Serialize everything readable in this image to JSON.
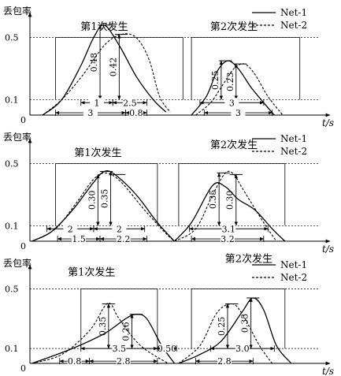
{
  "chart_data": [
    {
      "type": "line",
      "ylabel": "丢包率",
      "xlabel": "t/s",
      "origin_label": "0",
      "yticks": [
        {
          "value": 0.1,
          "label": "0.1"
        },
        {
          "value": 0.5,
          "label": "0.5"
        }
      ],
      "ylim": [
        0,
        0.62
      ],
      "xlim": [
        0,
        13.6
      ],
      "legend_position": "top-right",
      "legend": [
        {
          "name": "Net-1",
          "style": "solid"
        },
        {
          "name": "Net-2",
          "style": "dashed"
        }
      ],
      "event_labels": [
        {
          "text": "第1次发生",
          "x": 3.5,
          "y": 0.55
        },
        {
          "text": "第2次发生",
          "x": 9.6,
          "y": 0.55
        }
      ],
      "pulses": [
        [
          1.2,
          7.2
        ],
        [
          7.6,
          12.7
        ]
      ],
      "pulse_high": 0.5,
      "series": [
        {
          "name": "Net-1",
          "style": "solid",
          "x": [
            0.6,
            1.5,
            2.4,
            3.0,
            3.5,
            4.2,
            5.0,
            5.8,
            6.4
          ],
          "y": [
            0.0,
            0.1,
            0.32,
            0.5,
            0.58,
            0.45,
            0.25,
            0.1,
            0.02
          ]
        },
        {
          "name": "Net-2",
          "style": "dashed",
          "x": [
            0.6,
            1.5,
            2.5,
            3.5,
            4.3,
            5.0,
            5.6,
            6.1,
            6.6
          ],
          "y": [
            0.0,
            0.1,
            0.26,
            0.45,
            0.52,
            0.5,
            0.36,
            0.12,
            0.02
          ]
        },
        {
          "name": "Net-1",
          "style": "solid",
          "x": [
            7.6,
            8.3,
            8.8,
            9.3,
            9.8,
            10.4,
            11.0,
            11.5
          ],
          "y": [
            0.0,
            0.12,
            0.28,
            0.35,
            0.3,
            0.18,
            0.08,
            0.0
          ]
        },
        {
          "name": "Net-2",
          "style": "dashed",
          "x": [
            7.8,
            8.5,
            9.1,
            9.6,
            10.1,
            10.6,
            11.2,
            11.9
          ],
          "y": [
            0.0,
            0.08,
            0.2,
            0.3,
            0.33,
            0.26,
            0.12,
            0.0
          ]
        }
      ],
      "peak_caps": [
        [
          3.2,
          3.8,
          0.58
        ],
        [
          4.0,
          4.6,
          0.52
        ],
        [
          8.9,
          9.5,
          0.35
        ],
        [
          9.6,
          10.2,
          0.33
        ]
      ],
      "value_arrows": [
        {
          "x": 3.3,
          "y": 0.58,
          "label": "0.48"
        },
        {
          "x": 4.2,
          "y": 0.52,
          "label": "0.42"
        },
        {
          "x": 9.0,
          "y": 0.35,
          "label": "0.25"
        },
        {
          "x": 9.7,
          "y": 0.33,
          "label": "0.23"
        }
      ],
      "duration_arrows": [
        {
          "x1": 2.4,
          "x2": 3.9,
          "y": 0.08,
          "label": "1"
        },
        {
          "x1": 3.9,
          "x2": 5.5,
          "y": 0.08,
          "label": "2.5"
        },
        {
          "x1": 1.2,
          "x2": 4.5,
          "y": 0.015,
          "label": "3"
        },
        {
          "x1": 4.5,
          "x2": 5.5,
          "y": 0.015,
          "label": "0.8"
        },
        {
          "x1": 8.0,
          "x2": 11.0,
          "y": 0.08,
          "label": "3"
        },
        {
          "x1": 8.2,
          "x2": 11.4,
          "y": 0.015,
          "label": "3"
        }
      ]
    },
    {
      "type": "line",
      "ylabel": "丢包率",
      "xlabel": "t/s",
      "origin_label": "0",
      "yticks": [
        {
          "value": 0.1,
          "label": "0.1"
        },
        {
          "value": 0.5,
          "label": "0.5"
        }
      ],
      "ylim": [
        0,
        0.62
      ],
      "xlim": [
        0,
        13.6
      ],
      "legend_position": "top-right",
      "legend": [
        {
          "name": "Net-1",
          "style": "solid"
        },
        {
          "name": "Net-2",
          "style": "dashed"
        }
      ],
      "event_labels": [
        {
          "text": "第1次发生",
          "x": 3.2,
          "y": 0.55
        },
        {
          "text": "第2次发生",
          "x": 9.6,
          "y": 0.6
        }
      ],
      "pulses": [
        [
          1.2,
          6.0
        ],
        [
          7.0,
          12.0
        ]
      ],
      "pulse_high": 0.5,
      "series": [
        {
          "name": "Net-1",
          "style": "solid",
          "x": [
            0.1,
            1.0,
            2.0,
            3.0,
            3.5,
            4.0,
            5.0,
            6.0,
            6.8
          ],
          "y": [
            0.0,
            0.06,
            0.2,
            0.38,
            0.45,
            0.43,
            0.3,
            0.12,
            0.0
          ]
        },
        {
          "name": "Net-2",
          "style": "dashed",
          "x": [
            0.1,
            1.2,
            2.2,
            3.0,
            3.6,
            4.3,
            5.4,
            6.4,
            6.8
          ],
          "y": [
            0.0,
            0.08,
            0.25,
            0.4,
            0.44,
            0.38,
            0.2,
            0.05,
            0.0
          ]
        },
        {
          "name": "Net-1",
          "style": "solid",
          "x": [
            6.8,
            7.6,
            8.6,
            9.2,
            9.8,
            10.6,
            11.4,
            12.0
          ],
          "y": [
            0.0,
            0.12,
            0.36,
            0.35,
            0.27,
            0.2,
            0.08,
            0.0
          ]
        },
        {
          "name": "Net-2",
          "style": "dashed",
          "x": [
            6.8,
            7.8,
            8.6,
            9.2,
            9.6,
            10.0,
            11.0,
            11.6
          ],
          "y": [
            0.0,
            0.08,
            0.3,
            0.44,
            0.43,
            0.34,
            0.12,
            0.0
          ]
        }
      ],
      "peak_caps": [
        [
          3.3,
          3.9,
          0.45
        ],
        [
          3.9,
          4.5,
          0.43
        ],
        [
          8.8,
          9.4,
          0.44
        ],
        [
          9.4,
          10.0,
          0.43
        ]
      ],
      "value_arrows": [
        {
          "x": 3.2,
          "y": 0.43,
          "label": "0.30"
        },
        {
          "x": 3.8,
          "y": 0.45,
          "label": "0.35"
        },
        {
          "x": 8.9,
          "y": 0.44,
          "label": "0.35"
        },
        {
          "x": 9.7,
          "y": 0.43,
          "label": "0.30"
        }
      ],
      "duration_arrows": [
        {
          "x1": 0.8,
          "x2": 3.0,
          "y": 0.08,
          "label": "2"
        },
        {
          "x1": 3.0,
          "x2": 5.4,
          "y": 0.08,
          "label": "2"
        },
        {
          "x1": 1.3,
          "x2": 3.3,
          "y": 0.015,
          "label": "1.5"
        },
        {
          "x1": 3.3,
          "x2": 5.5,
          "y": 0.015,
          "label": "2.2"
        },
        {
          "x1": 7.5,
          "x2": 11.2,
          "y": 0.08,
          "label": "3.1"
        },
        {
          "x1": 7.6,
          "x2": 11.0,
          "y": 0.015,
          "label": "3.2"
        }
      ]
    },
    {
      "type": "line",
      "ylabel": "丢包率",
      "xlabel": "t/s",
      "origin_label": "0",
      "yticks": [
        {
          "value": 0.1,
          "label": "0.1"
        },
        {
          "value": 0.5,
          "label": "0.5"
        }
      ],
      "ylim": [
        0,
        0.62
      ],
      "xlim": [
        0,
        13.6
      ],
      "legend_position": "top-right",
      "legend": [
        {
          "name": "Net-1",
          "style": "solid"
        },
        {
          "name": "Net-2",
          "style": "dashed"
        }
      ],
      "event_labels": [
        {
          "text": "第1次发生",
          "x": 2.9,
          "y": 0.59
        },
        {
          "text": "第2次发生",
          "x": 10.3,
          "y": 0.68
        }
      ],
      "pulses": [
        [
          2.4,
          6.0
        ],
        [
          7.6,
          12.0
        ]
      ],
      "pulse_high": 0.5,
      "series": [
        {
          "name": "Net-1",
          "style": "solid",
          "x": [
            0.1,
            2.0,
            3.5,
            4.5,
            5.0,
            5.5,
            6.2,
            6.8
          ],
          "y": [
            0.0,
            0.1,
            0.2,
            0.3,
            0.33,
            0.3,
            0.12,
            0.0
          ]
        },
        {
          "name": "Net-2",
          "style": "dashed",
          "x": [
            0.1,
            1.5,
            2.8,
            3.5,
            3.8,
            4.2,
            5.2,
            6.5
          ],
          "y": [
            0.0,
            0.06,
            0.22,
            0.38,
            0.4,
            0.3,
            0.12,
            0.0
          ]
        },
        {
          "name": "Net-1",
          "style": "solid",
          "x": [
            7.0,
            8.0,
            9.0,
            10.0,
            10.5,
            11.0,
            11.6,
            12.3
          ],
          "y": [
            0.0,
            0.06,
            0.15,
            0.35,
            0.44,
            0.36,
            0.12,
            0.0
          ]
        },
        {
          "name": "Net-2",
          "style": "dashed",
          "x": [
            7.0,
            8.0,
            8.8,
            9.5,
            10.0,
            10.8,
            11.4
          ],
          "y": [
            0.0,
            0.12,
            0.34,
            0.4,
            0.33,
            0.12,
            0.0
          ]
        }
      ],
      "peak_caps": [
        [
          3.4,
          4.0,
          0.4
        ],
        [
          4.7,
          5.3,
          0.33
        ],
        [
          9.2,
          9.8,
          0.4
        ],
        [
          10.2,
          10.8,
          0.44
        ]
      ],
      "value_arrows": [
        {
          "x": 3.7,
          "y": 0.4,
          "label": "0.35"
        },
        {
          "x": 4.8,
          "y": 0.33,
          "label": "0.26"
        },
        {
          "x": 9.3,
          "y": 0.4,
          "label": "0.25"
        },
        {
          "x": 10.4,
          "y": 0.44,
          "label": "0.35"
        }
      ],
      "duration_arrows": [
        {
          "x1": 2.4,
          "x2": 6.0,
          "y": 0.1,
          "label": "3.5"
        },
        {
          "x1": 6.0,
          "x2": 6.9,
          "y": 0.1,
          "label": "0.50"
        },
        {
          "x1": 1.4,
          "x2": 2.8,
          "y": 0.015,
          "label": "0.8"
        },
        {
          "x1": 2.8,
          "x2": 6.0,
          "y": 0.015,
          "label": "2.8"
        },
        {
          "x1": 8.5,
          "x2": 11.5,
          "y": 0.1,
          "label": "3.0"
        },
        {
          "x1": 7.8,
          "x2": 10.5,
          "y": 0.015,
          "label": "2.8"
        }
      ]
    }
  ]
}
